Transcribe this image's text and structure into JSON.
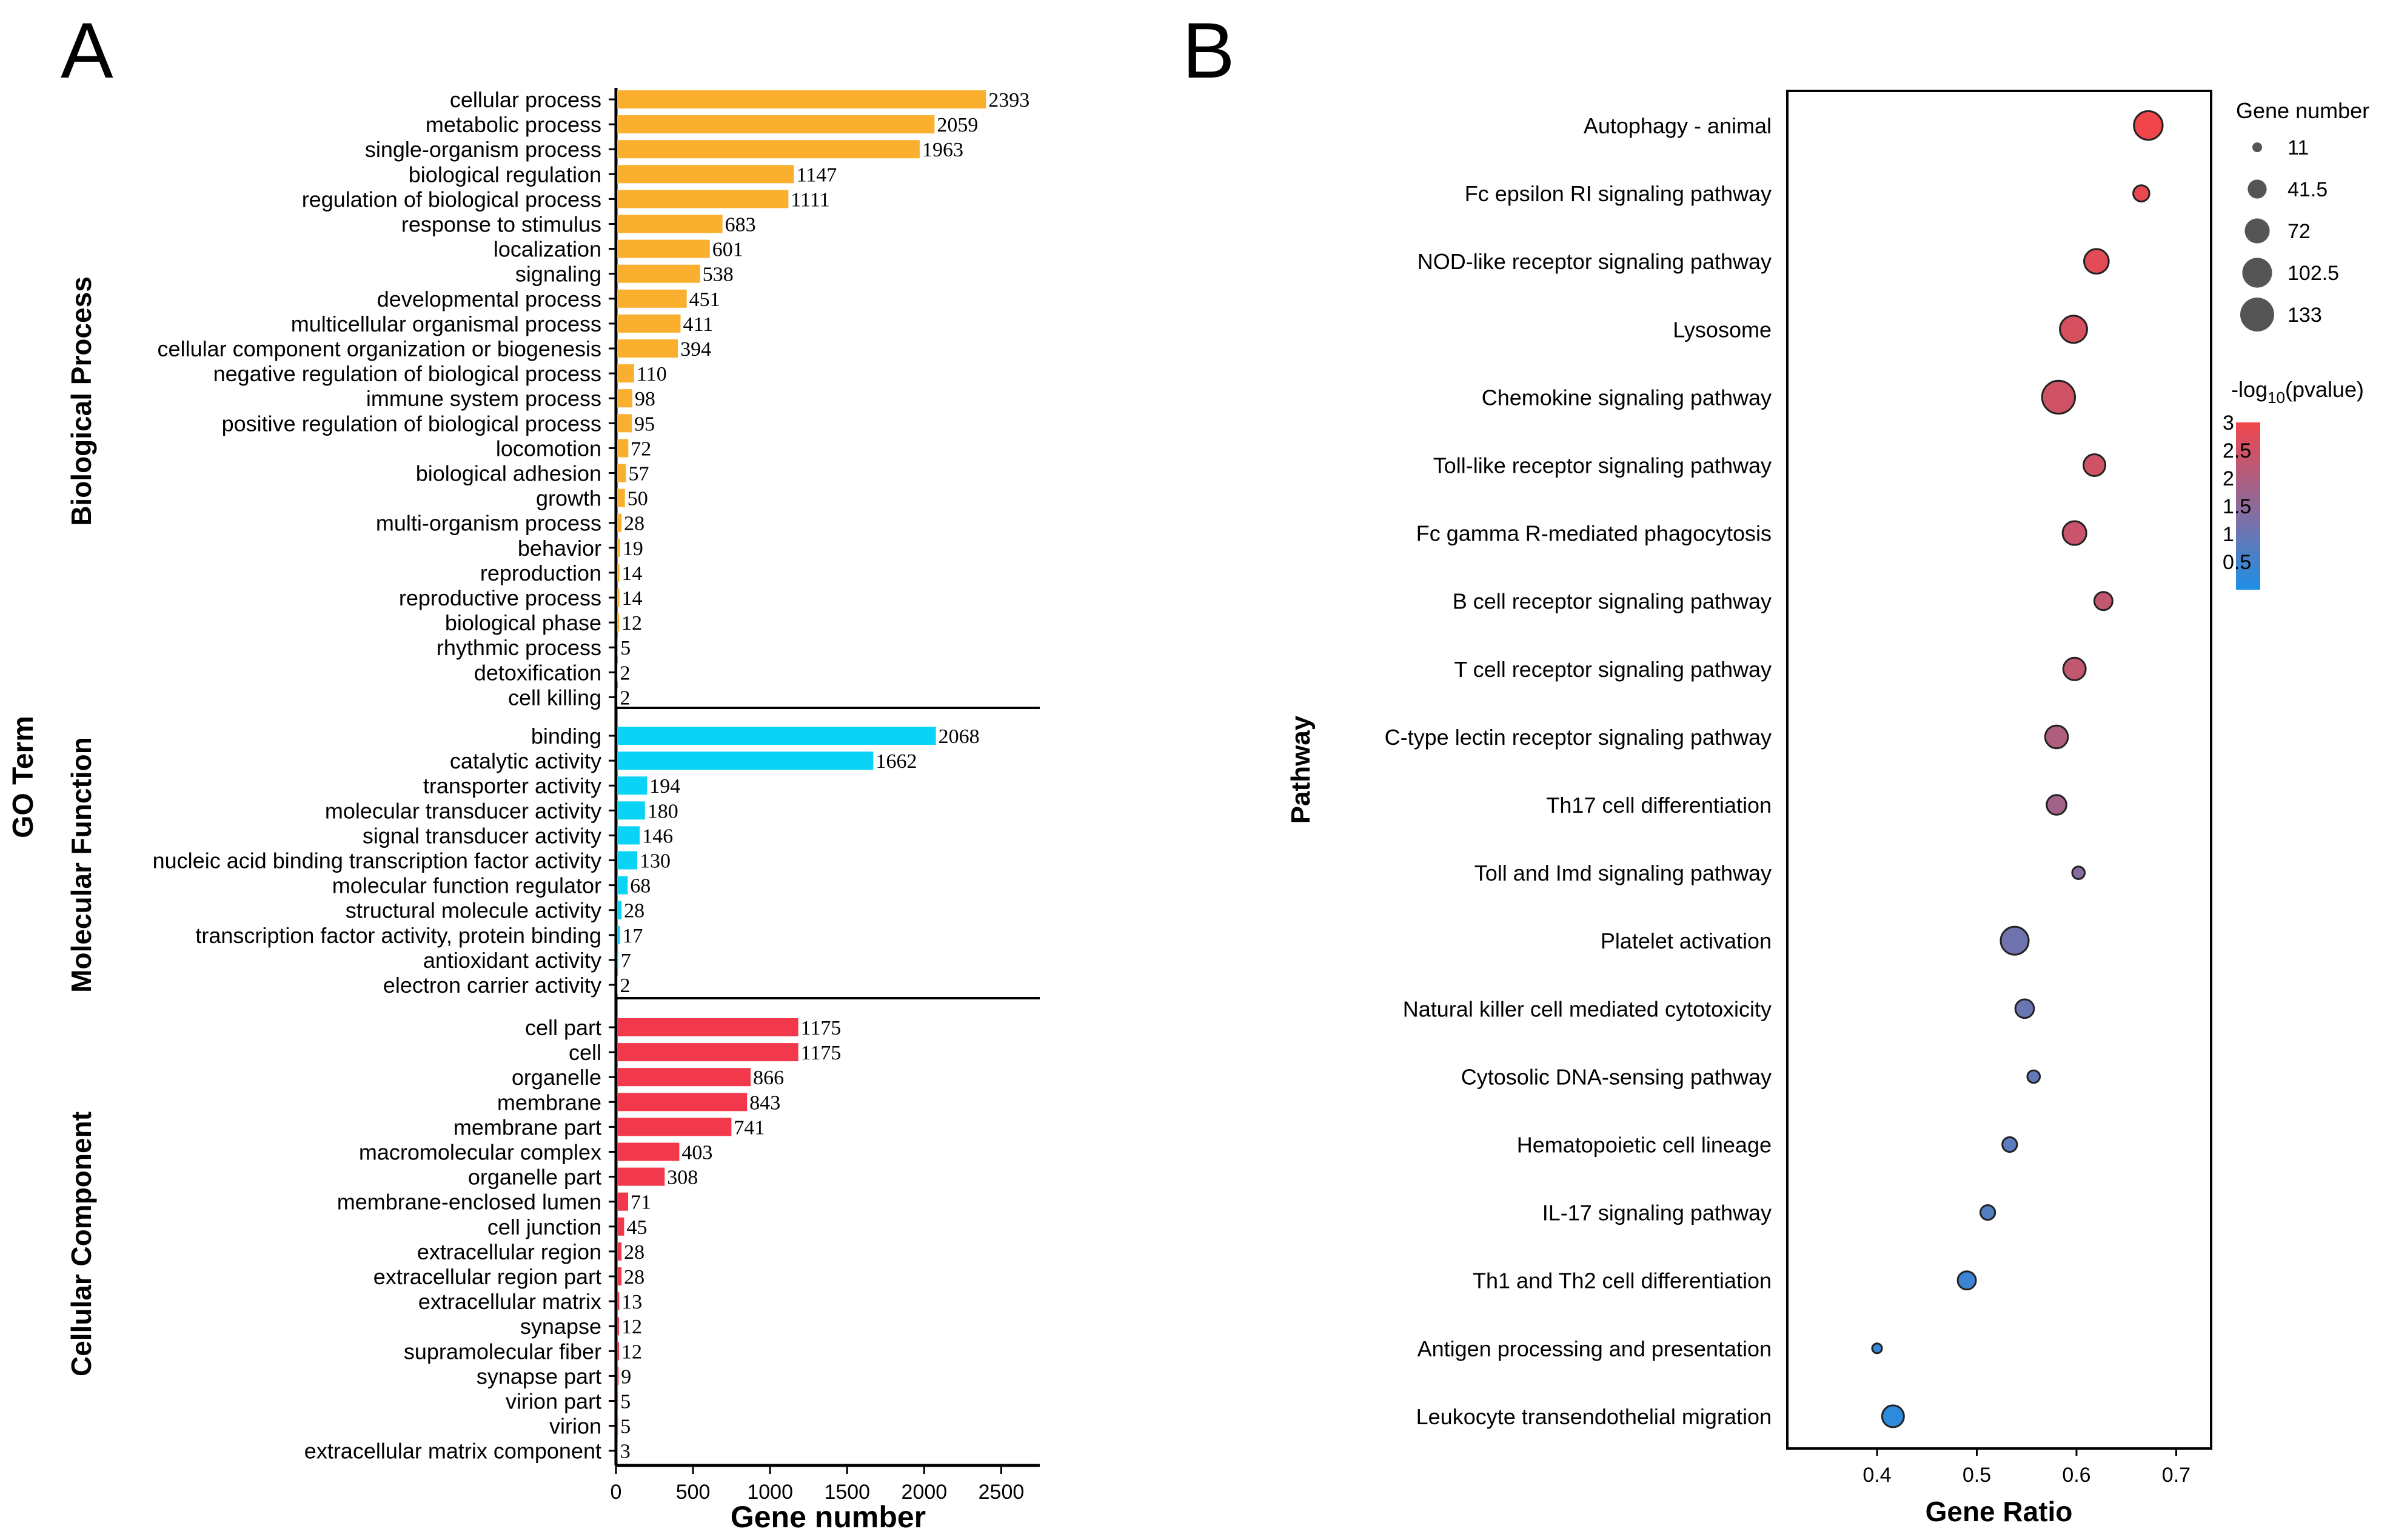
{
  "chart_data": [
    {
      "panel_label": "A",
      "type": "bar",
      "orientation": "horizontal",
      "title": "",
      "ylabel": "GO Term",
      "xlabel": "Gene number",
      "xlim": [
        0,
        2750
      ],
      "xticks": [
        0,
        500,
        1000,
        1500,
        2000,
        2500
      ],
      "groups": [
        {
          "name": "Biological Process",
          "color": "#FAAF2E",
          "categories": [
            "cellular process",
            "metabolic process",
            "single-organism process",
            "biological regulation",
            "regulation of biological process",
            "response to stimulus",
            "localization",
            "signaling",
            "developmental process",
            "multicellular organismal process",
            "cellular component organization or biogenesis",
            "negative regulation of biological process",
            "immune system process",
            "positive regulation of biological process",
            "locomotion",
            "biological adhesion",
            "growth",
            "multi-organism process",
            "behavior",
            "reproduction",
            "reproductive process",
            "biological phase",
            "rhythmic process",
            "detoxification",
            "cell killing"
          ],
          "values": [
            2393,
            2059,
            1963,
            1147,
            1111,
            683,
            601,
            538,
            451,
            411,
            394,
            110,
            98,
            95,
            72,
            57,
            50,
            28,
            19,
            14,
            14,
            12,
            5,
            2,
            2
          ]
        },
        {
          "name": "Molecular Function",
          "color": "#0BD3F5",
          "categories": [
            "binding",
            "catalytic activity",
            "transporter activity",
            "molecular transducer activity",
            "signal transducer activity",
            "nucleic acid binding transcription factor activity",
            "molecular function regulator",
            "structural molecule activity",
            "transcription factor activity, protein binding",
            "antioxidant activity",
            "electron carrier activity"
          ],
          "values": [
            2068,
            1662,
            194,
            180,
            146,
            130,
            68,
            28,
            17,
            7,
            2
          ]
        },
        {
          "name": "Cellular Component",
          "color": "#F2394B",
          "categories": [
            "cell part",
            "cell",
            "organelle",
            "membrane",
            "membrane part",
            "macromolecular complex",
            "organelle part",
            "membrane-enclosed lumen",
            "cell junction",
            "extracellular region",
            "extracellular region part",
            "extracellular matrix",
            "synapse",
            "supramolecular fiber",
            "synapse part",
            "virion part",
            "virion",
            "extracellular matrix component"
          ],
          "values": [
            1175,
            1175,
            866,
            843,
            741,
            403,
            308,
            71,
            45,
            28,
            28,
            13,
            12,
            12,
            9,
            5,
            5,
            3
          ]
        }
      ]
    },
    {
      "panel_label": "B",
      "type": "scatter",
      "title": "",
      "xlabel": "Gene Ratio",
      "ylabel": "Pathway",
      "xlim": [
        0.31,
        0.735
      ],
      "xticks": [
        0.4,
        0.5,
        0.6,
        0.7
      ],
      "categories": [
        "Autophagy - animal",
        "Fc epsilon RI signaling pathway",
        "NOD-like receptor signaling pathway",
        "Lysosome",
        "Chemokine signaling pathway",
        "Toll-like receptor signaling pathway",
        "Fc gamma R-mediated phagocytosis",
        "B cell receptor signaling pathway",
        "T cell receptor signaling pathway",
        "C-type lectin receptor signaling pathway",
        "Th17 cell differentiation",
        "Toll and Imd signaling pathway",
        "Platelet activation",
        "Natural killer cell mediated cytotoxicity",
        "Cytosolic DNA-sensing pathway",
        "Hematopoietic cell lineage",
        "IL-17 signaling pathway",
        "Th1 and Th2 cell differentiation",
        "Antigen processing and presentation",
        "Leukocyte transendothelial migration"
      ],
      "x": [
        0.672,
        0.665,
        0.62,
        0.597,
        0.582,
        0.618,
        0.598,
        0.627,
        0.598,
        0.58,
        0.58,
        0.602,
        0.538,
        0.548,
        0.557,
        0.533,
        0.511,
        0.49,
        0.4,
        0.416
      ],
      "gene_number": [
        95,
        30,
        70,
        85,
        125,
        55,
        65,
        38,
        58,
        60,
        45,
        18,
        90,
        40,
        18,
        25,
        25,
        38,
        11,
        55
      ],
      "neg_log10_pvalue": [
        3.0,
        2.9,
        2.8,
        2.6,
        2.5,
        2.5,
        2.4,
        2.3,
        2.3,
        2.0,
        1.8,
        1.4,
        1.1,
        1.0,
        0.9,
        0.8,
        0.7,
        0.4,
        0.3,
        0.2
      ],
      "size_legend": {
        "title": "Gene number",
        "labels": [
          "11",
          "41.5",
          "72",
          "102.5",
          "133"
        ],
        "values": [
          11,
          41.5,
          72,
          102.5,
          133
        ]
      },
      "color_legend": {
        "title_prefix": "-log",
        "title_sub": "10",
        "title_suffix": "(pvalue)",
        "labels": [
          "3",
          "2.5",
          "2",
          "1.5",
          "1",
          "0.5"
        ],
        "values": [
          3,
          2.5,
          2,
          1.5,
          1,
          0.5
        ],
        "range": [
          0,
          3
        ],
        "low_color": "#1E8FE6",
        "high_color": "#F0464B"
      }
    }
  ]
}
